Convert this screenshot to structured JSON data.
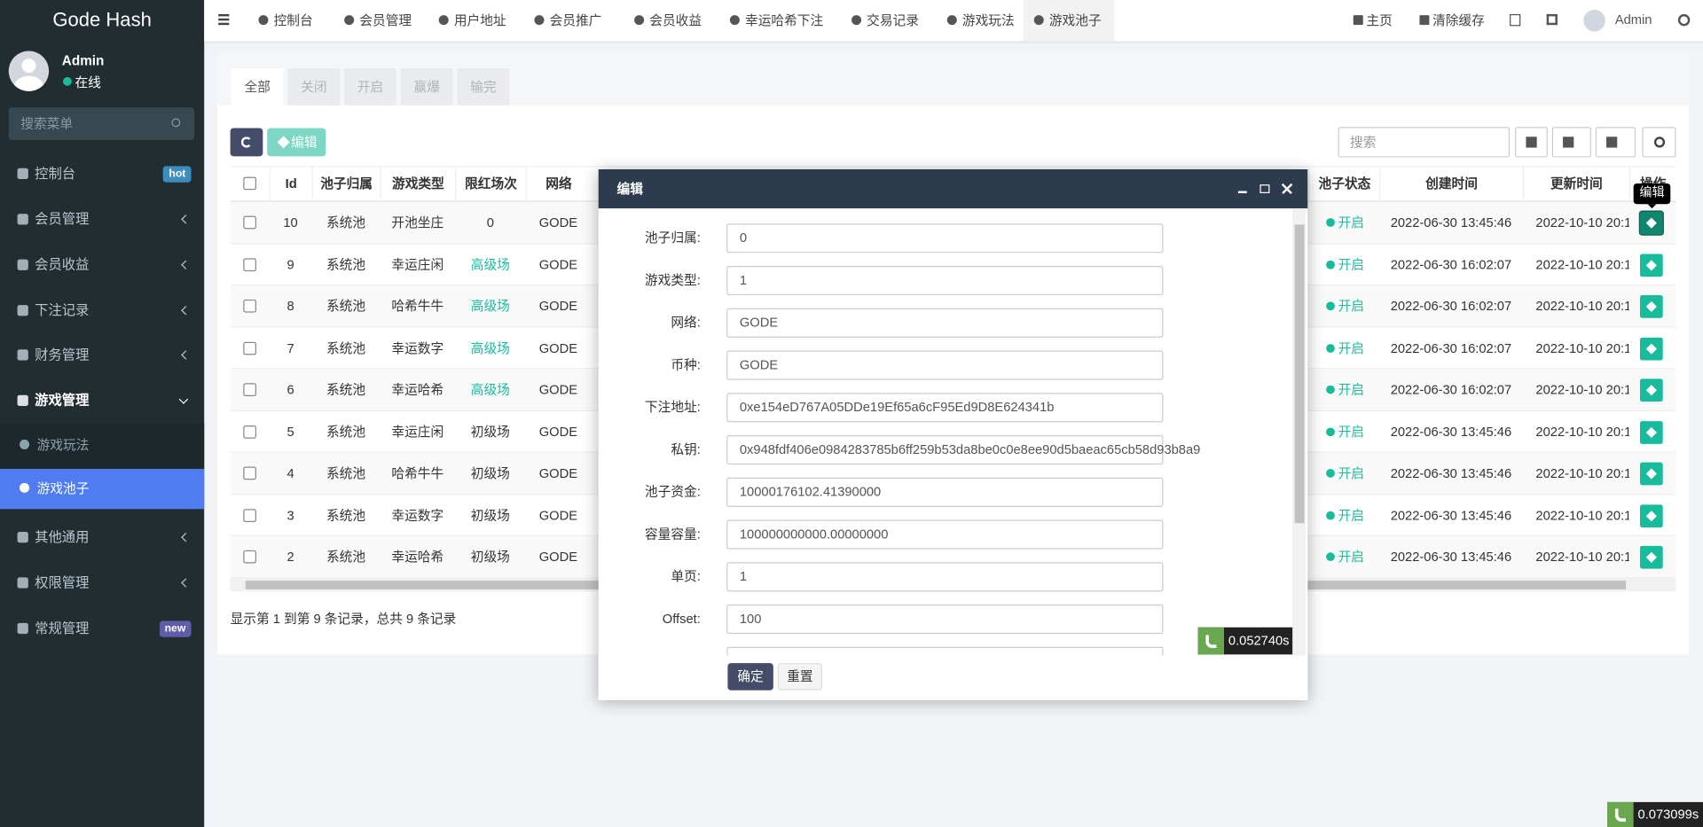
{
  "sidebar": {
    "brand": "Gode Hash",
    "user": {
      "name": "Admin",
      "status": "在线"
    },
    "search_placeholder": "搜索菜单",
    "menu": [
      {
        "label": "控制台",
        "badge": "hot"
      },
      {
        "label": "会员管理"
      },
      {
        "label": "会员收益"
      },
      {
        "label": "下注记录"
      },
      {
        "label": "财务管理"
      },
      {
        "label": "游戏管理",
        "children": [
          "游戏玩法",
          "游戏池子"
        ]
      },
      {
        "label": "其他通用"
      },
      {
        "label": "权限管理"
      },
      {
        "label": "常规管理",
        "badge": "new"
      }
    ]
  },
  "topbar": {
    "tabs": [
      "控制台",
      "会员管理",
      "用户地址",
      "会员推广",
      "会员收益",
      "幸运哈希下注",
      "交易记录",
      "游戏玩法",
      "游戏池子"
    ],
    "home": "主页",
    "clear_cache": "清除缓存",
    "user": "Admin"
  },
  "filter_tabs": [
    "全部",
    "关闭",
    "开启",
    "赢爆",
    "输完"
  ],
  "toolbar": {
    "edit": "编辑",
    "search_placeholder": "搜索"
  },
  "table": {
    "headers_left": [
      "Id",
      "池子归属",
      "游戏类型",
      "限红场次",
      "网络"
    ],
    "headers_right": [
      "池子状态",
      "创建时间",
      "更新时间",
      "操作"
    ],
    "rows": [
      [
        10,
        "系统池",
        "开池坐庄",
        "0",
        "GODE",
        "开启",
        "2022-06-30 13:45:46",
        "2022-10-10 20:1"
      ],
      [
        9,
        "系统池",
        "幸运庄闲",
        "高级场",
        "GODE",
        "开启",
        "2022-06-30 16:02:07",
        "2022-10-10 20:1"
      ],
      [
        8,
        "系统池",
        "哈希牛牛",
        "高级场",
        "GODE",
        "开启",
        "2022-06-30 16:02:07",
        "2022-10-10 20:1"
      ],
      [
        7,
        "系统池",
        "幸运数字",
        "高级场",
        "GODE",
        "开启",
        "2022-06-30 16:02:07",
        "2022-10-10 20:1"
      ],
      [
        6,
        "系统池",
        "幸运哈希",
        "高级场",
        "GODE",
        "开启",
        "2022-06-30 16:02:07",
        "2022-10-10 20:1"
      ],
      [
        5,
        "系统池",
        "幸运庄闲",
        "初级场",
        "GODE",
        "开启",
        "2022-06-30 13:45:46",
        "2022-10-10 20:1"
      ],
      [
        4,
        "系统池",
        "哈希牛牛",
        "初级场",
        "GODE",
        "开启",
        "2022-06-30 13:45:46",
        "2022-10-10 20:1"
      ],
      [
        3,
        "系统池",
        "幸运数字",
        "初级场",
        "GODE",
        "开启",
        "2022-06-30 13:45:46",
        "2022-10-10 20:1"
      ],
      [
        2,
        "系统池",
        "幸运哈希",
        "初级场",
        "GODE",
        "开启",
        "2022-06-30 13:45:46",
        "2022-10-10 20:1"
      ]
    ]
  },
  "pagination": "显示第 1 到第 9 条记录，总共 9 条记录",
  "modal": {
    "title": "编辑",
    "fields": [
      {
        "label": "池子归属:",
        "value": "0"
      },
      {
        "label": "游戏类型:",
        "value": "1"
      },
      {
        "label": "网络:",
        "value": "GODE"
      },
      {
        "label": "币种:",
        "value": "GODE"
      },
      {
        "label": "下注地址:",
        "value": "0xe154eD767A05DDe19Ef65a6cF95Ed9D8E624341b"
      },
      {
        "label": "私钥:",
        "value": "0x948fdf406e0984283785b6ff259b53da8be0c0e8ee90d5baeac65cb58d93b8a9"
      },
      {
        "label": "池子资金:",
        "value": "10000176102.41390000"
      },
      {
        "label": "容量容量:",
        "value": "100000000000.00000000"
      },
      {
        "label": "单页:",
        "value": "1"
      },
      {
        "label": "Offset:",
        "value": "100"
      }
    ],
    "buttons": [
      "确定",
      "重置"
    ]
  },
  "tooltip": "编辑",
  "timings": [
    "0.052740s",
    "0.073099s"
  ]
}
